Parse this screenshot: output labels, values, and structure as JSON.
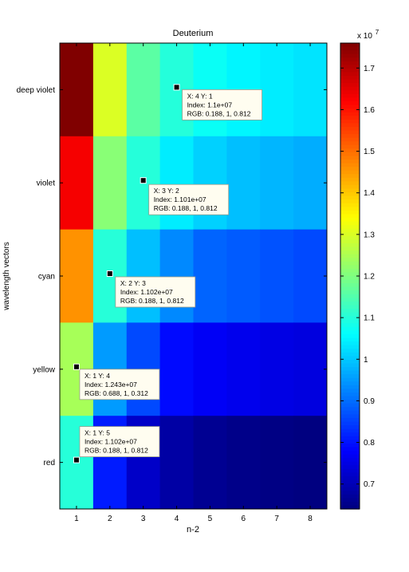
{
  "chart_data": {
    "type": "heatmap",
    "title": "Deuterium",
    "xlabel": "n-2",
    "ylabel": "wavelength vectors",
    "x_ticks": [
      1,
      2,
      3,
      4,
      5,
      6,
      7,
      8
    ],
    "y_categories": [
      "deep violet",
      "violet",
      "cyan",
      "yellow",
      "red"
    ],
    "values": [
      [
        17.6,
        13.0,
        11.6,
        11.0,
        10.7,
        10.5,
        10.4,
        10.3
      ],
      [
        16.3,
        12.1,
        11.01,
        10.4,
        10.1,
        9.9,
        9.8,
        9.7
      ],
      [
        14.6,
        11.02,
        9.9,
        9.3,
        8.9,
        8.8,
        8.7,
        8.6
      ],
      [
        12.43,
        9.5,
        8.6,
        7.9,
        7.7,
        7.6,
        7.5,
        7.45
      ],
      [
        11.02,
        8.1,
        7.2,
        6.8,
        6.6,
        6.5,
        6.45,
        6.4
      ]
    ],
    "colorbar": {
      "min": 6.4,
      "max": 17.6,
      "ticks": [
        "0.7",
        "0.8",
        "0.9",
        "1",
        "1.1",
        "1.2",
        "1.3",
        "1.4",
        "1.5",
        "1.6",
        "1.7"
      ],
      "tick_values": [
        7,
        8,
        9,
        10,
        11,
        12,
        13,
        14,
        15,
        16,
        17
      ],
      "multiplier": "x 10",
      "exponent": "7",
      "colormap": "jet"
    },
    "datatips": [
      {
        "x": 4,
        "y": 1,
        "lines": [
          "X: 4 Y: 1",
          "Index: 1.1e+07",
          "RGB: 0.188, 1, 0.812"
        ]
      },
      {
        "x": 3,
        "y": 2,
        "lines": [
          "X: 3 Y: 2",
          "Index: 1.101e+07",
          "RGB: 0.188, 1, 0.812"
        ]
      },
      {
        "x": 2,
        "y": 3,
        "lines": [
          "X: 2 Y: 3",
          "Index: 1.102e+07",
          "RGB: 0.188, 1, 0.812"
        ]
      },
      {
        "x": 1,
        "y": 4,
        "lines": [
          "X: 1 Y: 4",
          "Index: 1.243e+07",
          "RGB: 0.688, 1, 0.312"
        ]
      },
      {
        "x": 1,
        "y": 5,
        "lines": [
          "X: 1 Y: 5",
          "Index: 1.102e+07",
          "RGB: 0.188, 1, 0.812"
        ]
      }
    ]
  }
}
